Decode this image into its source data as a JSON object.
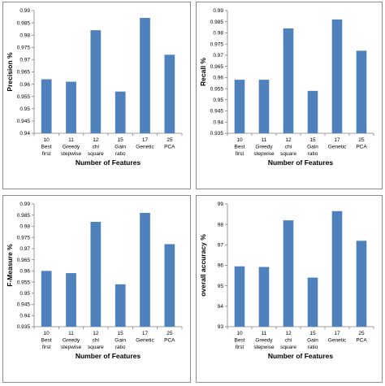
{
  "chart_data": [
    {
      "type": "bar",
      "categories": [
        [
          "10",
          "Best",
          "first"
        ],
        [
          "11",
          "Greedy",
          "stepwise"
        ],
        [
          "12",
          "chi",
          "square"
        ],
        [
          "15",
          "Gain",
          "ratio"
        ],
        [
          "17",
          "Genetic"
        ],
        [
          "25",
          "PCA"
        ]
      ],
      "values": [
        0.962,
        0.961,
        0.982,
        0.957,
        0.987,
        0.972
      ],
      "title": "",
      "xlabel": "Number of Features",
      "ylabel": "Precision %",
      "ylim": [
        0.94,
        0.99
      ],
      "yticks": [
        "0.94",
        "0.945",
        "0.95",
        "0.955",
        "0.96",
        "0.965",
        "0.97",
        "0.975",
        "0.98",
        "0.985",
        "0.99"
      ],
      "grid": false,
      "legend": "none",
      "bar_color": "#4f81bd"
    },
    {
      "type": "bar",
      "categories": [
        [
          "10",
          "Best",
          "first"
        ],
        [
          "11",
          "Greedy",
          "stepwise"
        ],
        [
          "12",
          "chi",
          "square"
        ],
        [
          "15",
          "Gain",
          "ratio"
        ],
        [
          "17",
          "Genetic"
        ],
        [
          "25",
          "PCA"
        ]
      ],
      "values": [
        0.959,
        0.959,
        0.982,
        0.954,
        0.986,
        0.972
      ],
      "title": "",
      "xlabel": "Number of Features",
      "ylabel": "Recall %",
      "ylim": [
        0.935,
        0.99
      ],
      "yticks": [
        "0.935",
        "0.94",
        "0.945",
        "0.95",
        "0.955",
        "0.96",
        "0.965",
        "0.97",
        "0.975",
        "0.98",
        "0.985",
        "0.99"
      ],
      "grid": false,
      "legend": "none",
      "bar_color": "#4f81bd"
    },
    {
      "type": "bar",
      "categories": [
        [
          "10",
          "Best",
          "first"
        ],
        [
          "11",
          "Greedy",
          "stepwise"
        ],
        [
          "12",
          "chi",
          "square"
        ],
        [
          "15",
          "Gain",
          "ratio"
        ],
        [
          "17",
          "Genetic"
        ],
        [
          "25",
          "PCA"
        ]
      ],
      "values": [
        0.96,
        0.959,
        0.982,
        0.954,
        0.986,
        0.972
      ],
      "title": "",
      "xlabel": "Number of Features",
      "ylabel": "F-Measure %",
      "ylim": [
        0.935,
        0.99
      ],
      "yticks": [
        "0.935",
        "0.94",
        "0.945",
        "0.95",
        "0.955",
        "0.96",
        "0.965",
        "0.97",
        "0.975",
        "0.98",
        "0.985",
        "0.99"
      ],
      "grid": false,
      "legend": "none",
      "bar_color": "#4f81bd"
    },
    {
      "type": "bar",
      "categories": [
        [
          "10",
          "Best",
          "first"
        ],
        [
          "11",
          "Greedy",
          "stepwise"
        ],
        [
          "12",
          "chi",
          "square"
        ],
        [
          "15",
          "Gain",
          "ratio"
        ],
        [
          "17",
          "Genetic"
        ],
        [
          "25",
          "PCA"
        ]
      ],
      "values": [
        95.95,
        95.92,
        98.2,
        95.4,
        98.65,
        97.2
      ],
      "title": "",
      "xlabel": "Number of Features",
      "ylabel": "overall accuracy %",
      "ylim": [
        93,
        99
      ],
      "yticks": [
        "93",
        "94",
        "95",
        "96",
        "97",
        "98",
        "99"
      ],
      "grid": false,
      "legend": "none",
      "bar_color": "#4f81bd"
    }
  ]
}
